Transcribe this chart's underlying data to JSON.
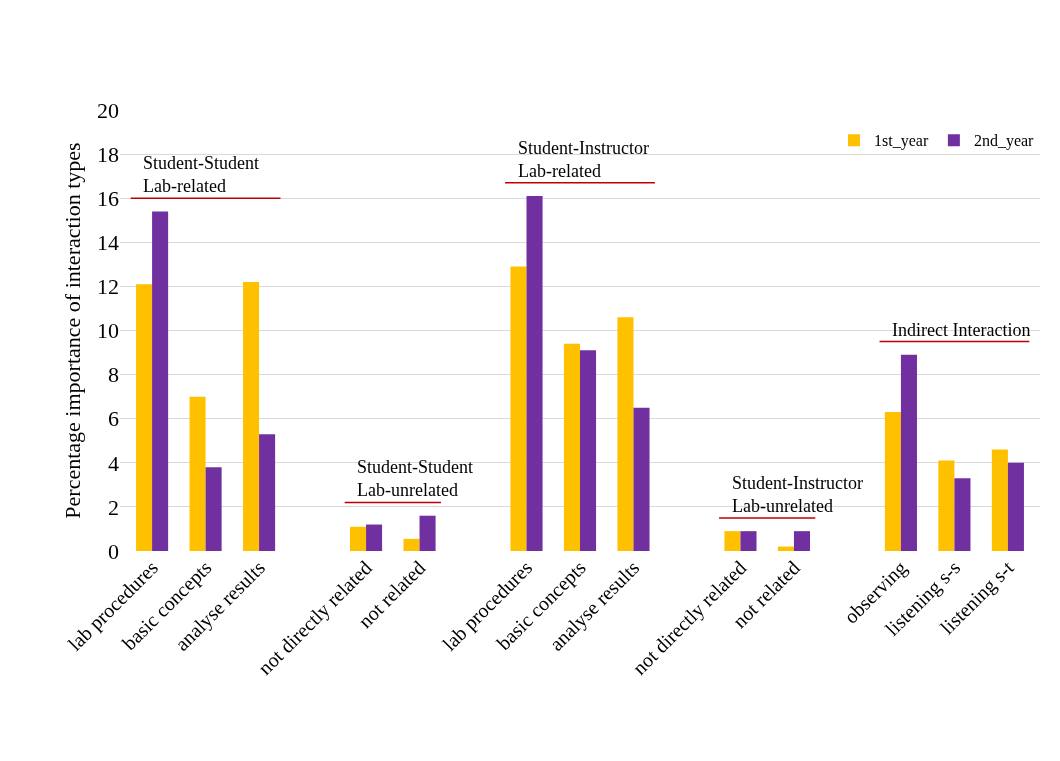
{
  "chart_data": {
    "type": "bar",
    "ylabel": "Percentage importance of interaction types",
    "categories": [
      "lab procedures",
      "basic concepts",
      "analyse results",
      null,
      "not directly related",
      "not related",
      null,
      "lab procedures",
      "basic concepts",
      "analyse results",
      null,
      "not directly related",
      "not related",
      null,
      "observing",
      "listening s-s",
      "listening s-t"
    ],
    "series": [
      {
        "name": "1st_year",
        "color": "#ffc000",
        "values": [
          12.1,
          7.0,
          12.2,
          null,
          1.1,
          0.55,
          null,
          12.9,
          9.4,
          10.6,
          null,
          0.9,
          0.2,
          null,
          6.3,
          4.1,
          4.6
        ]
      },
      {
        "name": "2nd_year",
        "color": "#7030a0",
        "values": [
          15.4,
          3.8,
          5.3,
          null,
          1.2,
          1.6,
          null,
          16.1,
          9.1,
          6.5,
          null,
          0.9,
          0.9,
          null,
          8.9,
          3.3,
          4.0
        ]
      }
    ],
    "annotations": [
      "Student-Student\nLab-related",
      "Student-Student\nLab-unrelated",
      "Student-Instructor\nLab-related",
      "Student-Instructor\nLab-unrelated",
      "Indirect Interaction"
    ],
    "ylim": [
      0,
      20
    ],
    "yticks": [
      0,
      2,
      4,
      6,
      8,
      10,
      12,
      14,
      16,
      18,
      20
    ],
    "grid": "y",
    "legend": "top right"
  }
}
